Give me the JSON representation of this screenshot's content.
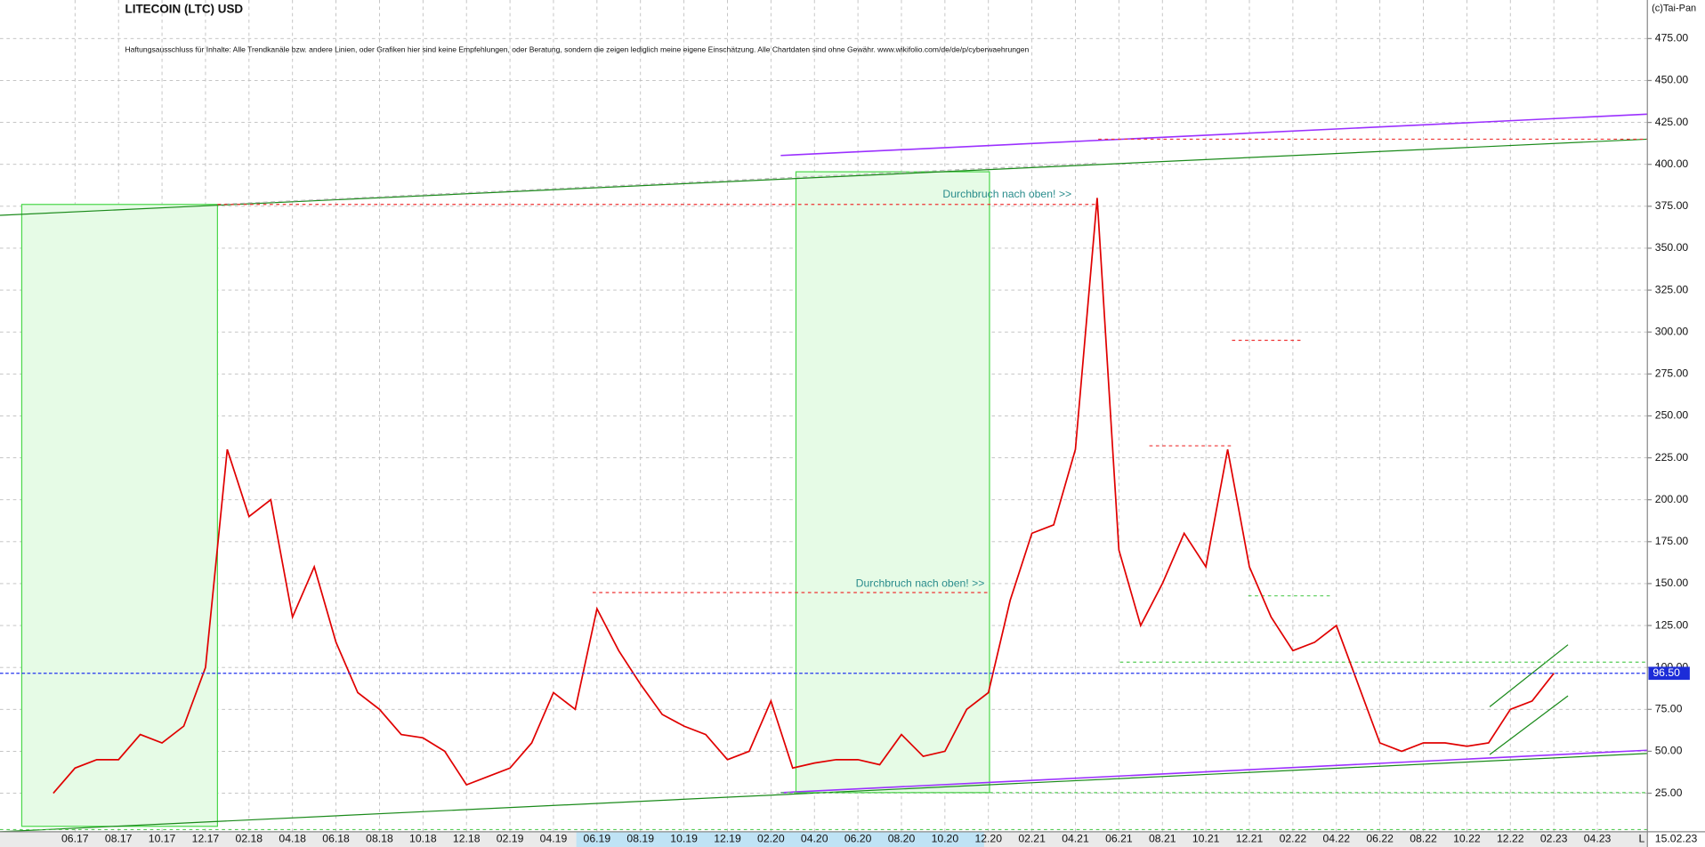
{
  "chart_data": {
    "type": "line",
    "title": "LITECOIN (LTC) USD",
    "subtitle": "Haftungsausschluss für Inhalte: Alle Trendkanäle bzw. andere Linien, oder Grafiken hier sind keine Empfehlungen, oder Beratung, sondern die zeigen lediglich meine eigene Einschätzung. Alle Chartdaten sind ohne Gewähr.  www.wikifolio.com/de/de/p/cyberwaehrungen",
    "source": "(c)Tai-Pan",
    "date_label": "15.02.23",
    "corner_label": "L",
    "annotations": [
      "Durchbruch nach oben! >>",
      "Durchbruch nach oben! >>"
    ],
    "categories": [
      null,
      "06.17",
      null,
      "08.17",
      null,
      "10.17",
      null,
      "12.17",
      null,
      "02.18",
      null,
      "04.18",
      null,
      "06.18",
      null,
      "08.18",
      null,
      "10.18",
      null,
      "12.18",
      null,
      "02.19",
      null,
      "04.19",
      null,
      "06.19",
      null,
      "08.19",
      null,
      "10.19",
      null,
      "12.19",
      null,
      "02.20",
      null,
      "04.20",
      null,
      "06.20",
      null,
      "08.20",
      null,
      "10.20",
      null,
      "12.20",
      null,
      "02.21",
      null,
      "04.21",
      null,
      "06.21",
      null,
      "08.21",
      null,
      "10.21",
      null,
      "12.21",
      null,
      "02.22",
      null,
      "04.22",
      null,
      "06.22",
      null,
      "08.22",
      null,
      "10.22",
      null,
      "12.22",
      null,
      "02.23",
      null,
      "04.23"
    ],
    "series": [
      {
        "name": "LTC",
        "color": "#e00000",
        "values": [
          25,
          40,
          45,
          45,
          60,
          55,
          65,
          100,
          230,
          190,
          200,
          130,
          160,
          115,
          85,
          75,
          60,
          58,
          50,
          30,
          35,
          40,
          55,
          85,
          75,
          135,
          110,
          90,
          72,
          65,
          60,
          45,
          50,
          80,
          40,
          43,
          45,
          45,
          42,
          60,
          47,
          50,
          75,
          85,
          140,
          180,
          185,
          230,
          380,
          170,
          125,
          150,
          180,
          160,
          230,
          160,
          130,
          110,
          115,
          125,
          90,
          55,
          50,
          55,
          55,
          53,
          55,
          75,
          80,
          96.5,
          null,
          null
        ]
      }
    ],
    "last": {
      "value": 96.5,
      "label": "96.50"
    },
    "ylim": [
      2,
      498
    ],
    "yticks": [
      {
        "value": 25,
        "label": "25.00"
      },
      {
        "value": 50,
        "label": "50.00"
      },
      {
        "value": 75,
        "label": "75.00"
      },
      {
        "value": 100,
        "label": "100.00"
      },
      {
        "value": 125,
        "label": "125.00"
      },
      {
        "value": 150,
        "label": "150.00"
      },
      {
        "value": 175,
        "label": "175.00"
      },
      {
        "value": 200,
        "label": "200.00"
      },
      {
        "value": 225,
        "label": "225.00"
      },
      {
        "value": 250,
        "label": "250.00"
      },
      {
        "value": 275,
        "label": "275.00"
      },
      {
        "value": 300,
        "label": "300.00"
      },
      {
        "value": 325,
        "label": "325.00"
      },
      {
        "value": 350,
        "label": "350.00"
      },
      {
        "value": 375,
        "label": "375.00"
      },
      {
        "value": 400,
        "label": "400.00"
      },
      {
        "value": 425,
        "label": "425.00"
      },
      {
        "value": 450,
        "label": "450.00"
      },
      {
        "value": 475,
        "label": "475.00"
      }
    ],
    "grid": true
  }
}
